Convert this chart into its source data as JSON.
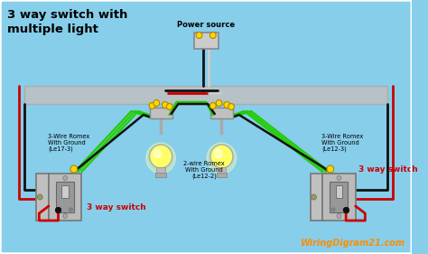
{
  "bg_color": "#87CEEB",
  "title": "3 way switch with\nmultiple light",
  "title_color": "#000000",
  "title_fontsize": 9.5,
  "power_source_label": "Power source",
  "label_3wire_left": "3-Wire Romex\nWith Ground\n(Le17-3)",
  "label_2wire": "2-wire Romex\nWith Ground\n(Le12-2)",
  "label_3wire_right": "3-Wire Romex\nWith Ground\n(Le12-3)",
  "label_switch_right": "3 way switch",
  "label_switch_bottom_left": "3 way switch",
  "watermark": "WiringDigram21.com",
  "watermark_color": "#FF8C00",
  "wire_black": "#111111",
  "wire_red": "#CC0000",
  "wire_green": "#22CC00",
  "wire_white": "#CCCCCC",
  "ceiling_color": "#B8B8B8",
  "bulb_color": "#FFFF66",
  "connector_color": "#FFD700",
  "switch_plate_color": "#BBBBBB",
  "switch_body_color": "#AAAAAA",
  "junction_box_color": "#C0C0C0"
}
